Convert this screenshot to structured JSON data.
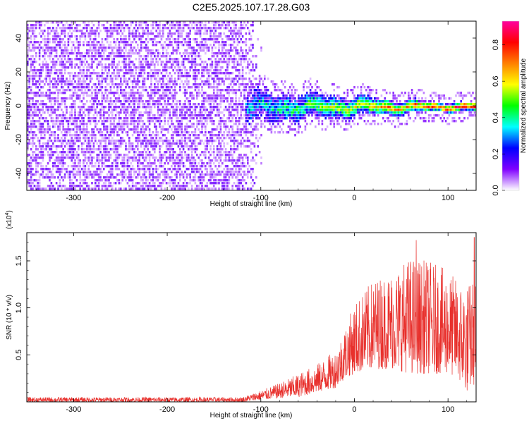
{
  "title": "C2E5.2025.107.17.28.G03",
  "chart_data": [
    {
      "type": "heatmap",
      "xlabel": "Height of straight line (km)",
      "ylabel": "Frequency (Hz)",
      "xlim": [
        -350,
        130
      ],
      "ylim": [
        -50,
        50
      ],
      "xticks": [
        -300,
        -200,
        -100,
        0,
        100
      ],
      "yticks": [
        -40,
        -20,
        0,
        20,
        40
      ],
      "grid": false,
      "colorbar": {
        "label": "Normalized spectral amplitude",
        "range": [
          0,
          0.93
        ],
        "ticks": [
          "0.0",
          "0.2",
          "0.4",
          "0.6",
          "0.8"
        ],
        "colors": [
          "#ffffff",
          "#8000ff",
          "#0000ff",
          "#00ffff",
          "#00ff00",
          "#ffff00",
          "#ff8000",
          "#ff0000",
          "#ff00a0"
        ]
      },
      "features": {
        "noise_region_x": [
          -350,
          -110
        ],
        "signal_band_x": [
          -110,
          130
        ],
        "signal_center_freq": 0,
        "signal_halfwidth_hz": [
          10,
          3
        ]
      }
    },
    {
      "type": "line",
      "xlabel": "Height of straight line (km)",
      "ylabel": "SNR (10 * v/v)",
      "y_multiplier": "(x10",
      "y_multiplier_exp": "4",
      "xlim": [
        -350,
        130
      ],
      "ylim": [
        0,
        1.8
      ],
      "xticks": [
        -300,
        -200,
        -100,
        0,
        100
      ],
      "yticks": [
        "0.5",
        "1.0",
        "1.5"
      ],
      "grid": false,
      "series": [
        {
          "color": "#e8302c",
          "envelope_x": [
            -350,
            -120,
            -100,
            -80,
            -60,
            -40,
            -20,
            -10,
            0,
            20,
            40,
            60,
            80,
            100,
            110,
            120,
            130
          ],
          "envelope_upper": [
            0.05,
            0.05,
            0.12,
            0.2,
            0.3,
            0.4,
            0.55,
            0.8,
            1.05,
            1.3,
            1.4,
            1.55,
            1.5,
            1.4,
            1.3,
            1.25,
            1.35
          ],
          "envelope_lower": [
            0.0,
            0.0,
            0.02,
            0.04,
            0.05,
            0.1,
            0.15,
            0.25,
            0.3,
            0.35,
            0.35,
            0.3,
            0.3,
            0.3,
            0.25,
            0.1,
            0.2
          ],
          "peak_x": [
            66,
            128
          ],
          "peak_y": [
            1.72,
            1.75
          ]
        }
      ]
    }
  ]
}
